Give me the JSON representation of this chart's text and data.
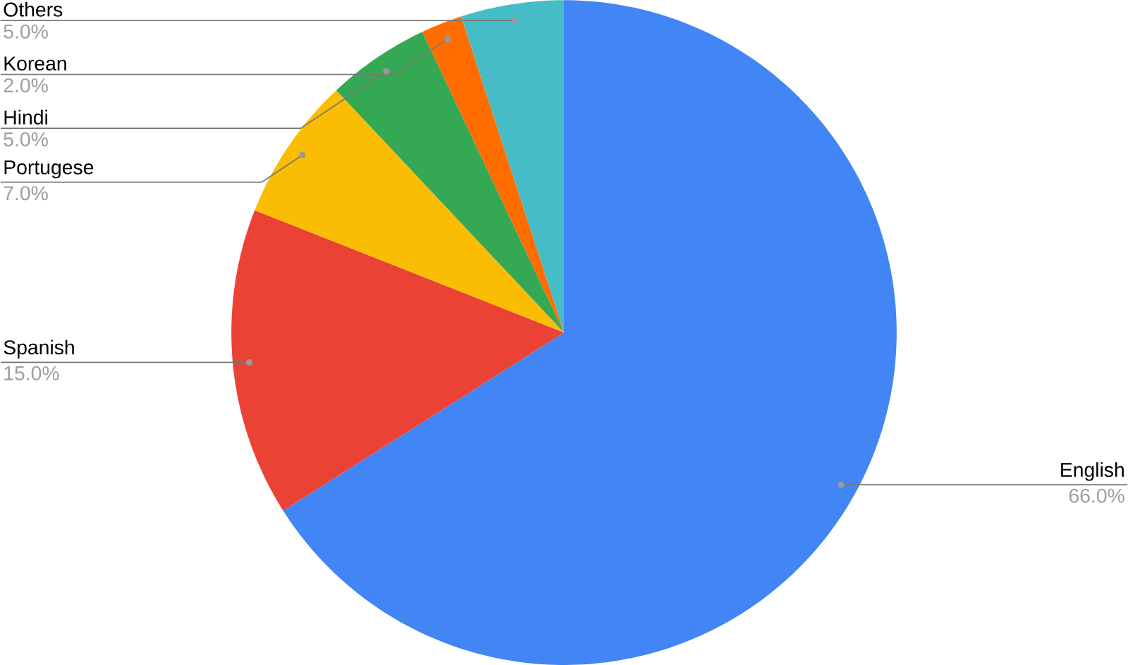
{
  "chart_data": {
    "type": "pie",
    "categories": [
      "English",
      "Spanish",
      "Portugese",
      "Hindi",
      "Korean",
      "Others"
    ],
    "values": [
      66,
      15,
      7,
      5,
      2,
      5
    ],
    "colors": [
      "#4285f4",
      "#ea4335",
      "#fbbc04",
      "#34a853",
      "#ff6d01",
      "#46bdc6"
    ],
    "value_labels": [
      "66.0%",
      "15.0%",
      "7.0%",
      "5.0%",
      "2.0%",
      "5.0%"
    ]
  }
}
